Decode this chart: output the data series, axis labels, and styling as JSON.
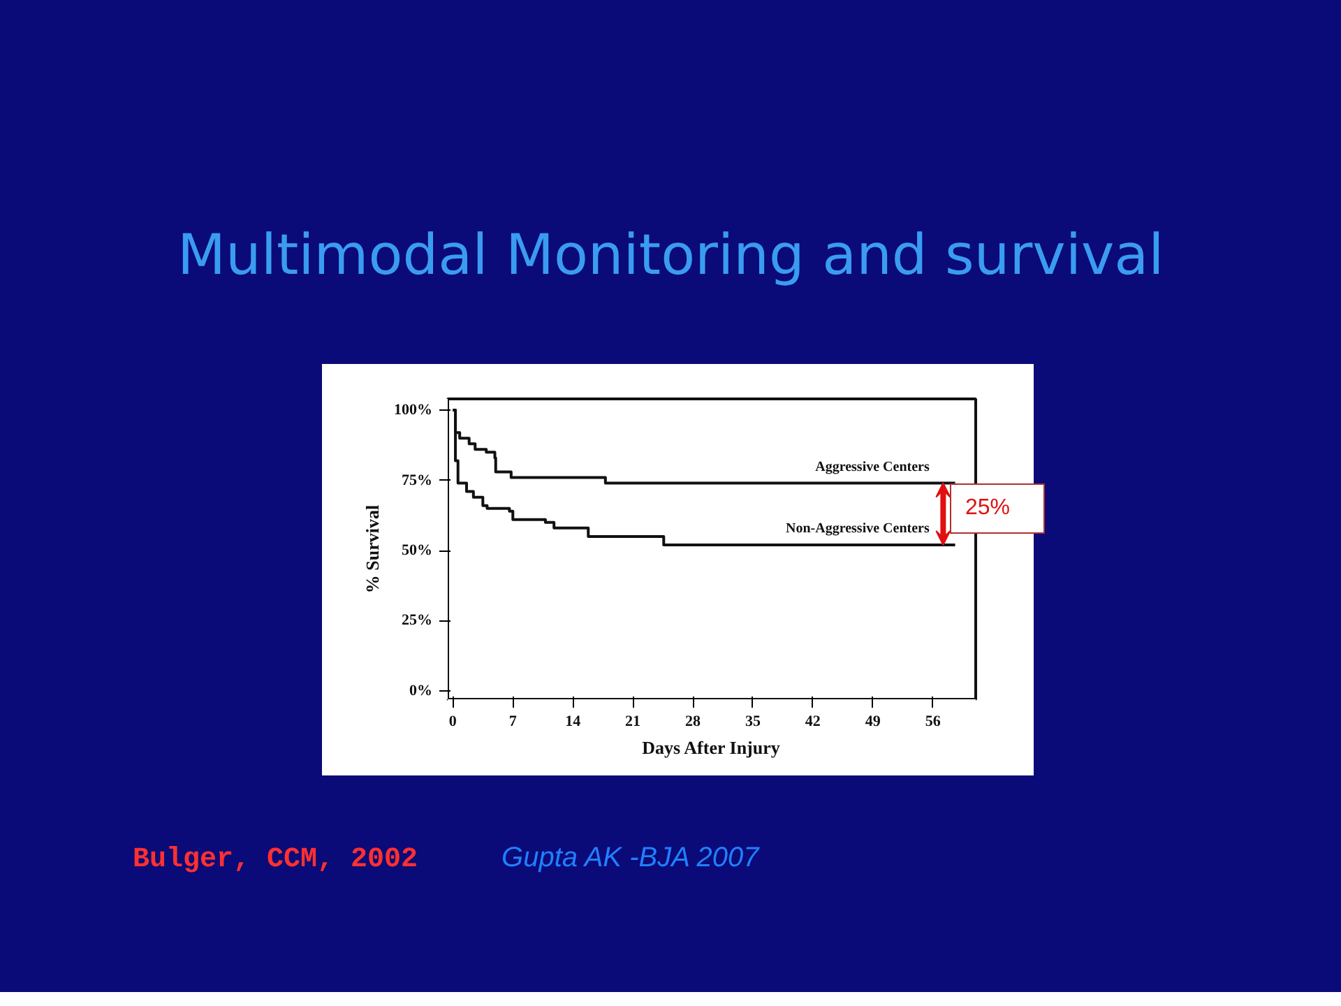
{
  "chart_data": {
    "type": "step",
    "title": "Multimodal Monitoring and survival",
    "xlabel": "Days After Injury",
    "ylabel": "% Survival",
    "series": [
      {
        "name": "Aggressive Centers",
        "color": "#111111",
        "x": [
          0,
          0.3,
          0.8,
          1.9,
          2.6,
          3.9,
          4.9,
          5.0,
          6.8,
          17.8,
          58.6
        ],
        "values": [
          100,
          92,
          90,
          88,
          86,
          85,
          83,
          78,
          76,
          74,
          74
        ]
      },
      {
        "name": "Non-Aggressive Centers",
        "color": "#111111",
        "x": [
          0,
          0.3,
          0.6,
          1.6,
          2.4,
          3.5,
          4.0,
          6.6,
          7.0,
          10.8,
          11.8,
          15.8,
          24.6,
          58.6
        ],
        "values": [
          100,
          82,
          74,
          71,
          69,
          66,
          65,
          64,
          61,
          60,
          58,
          55,
          52,
          52
        ]
      }
    ],
    "xlim": [
      -0.6,
      61
    ],
    "xticks": [
      0,
      7,
      14,
      21,
      28,
      35,
      42,
      49,
      56
    ],
    "ylim": [
      -3,
      104
    ],
    "yticks": [
      {
        "value": 0,
        "label": "0%"
      },
      {
        "value": 25,
        "label": "25%"
      },
      {
        "value": 50,
        "label": "50%"
      },
      {
        "value": 75,
        "label": "75%"
      },
      {
        "value": 100,
        "label": "100%"
      }
    ],
    "annotations": [
      "25%",
      "Bulger, CCM, 2002",
      "Gupta AK -BJA 2007"
    ]
  }
}
